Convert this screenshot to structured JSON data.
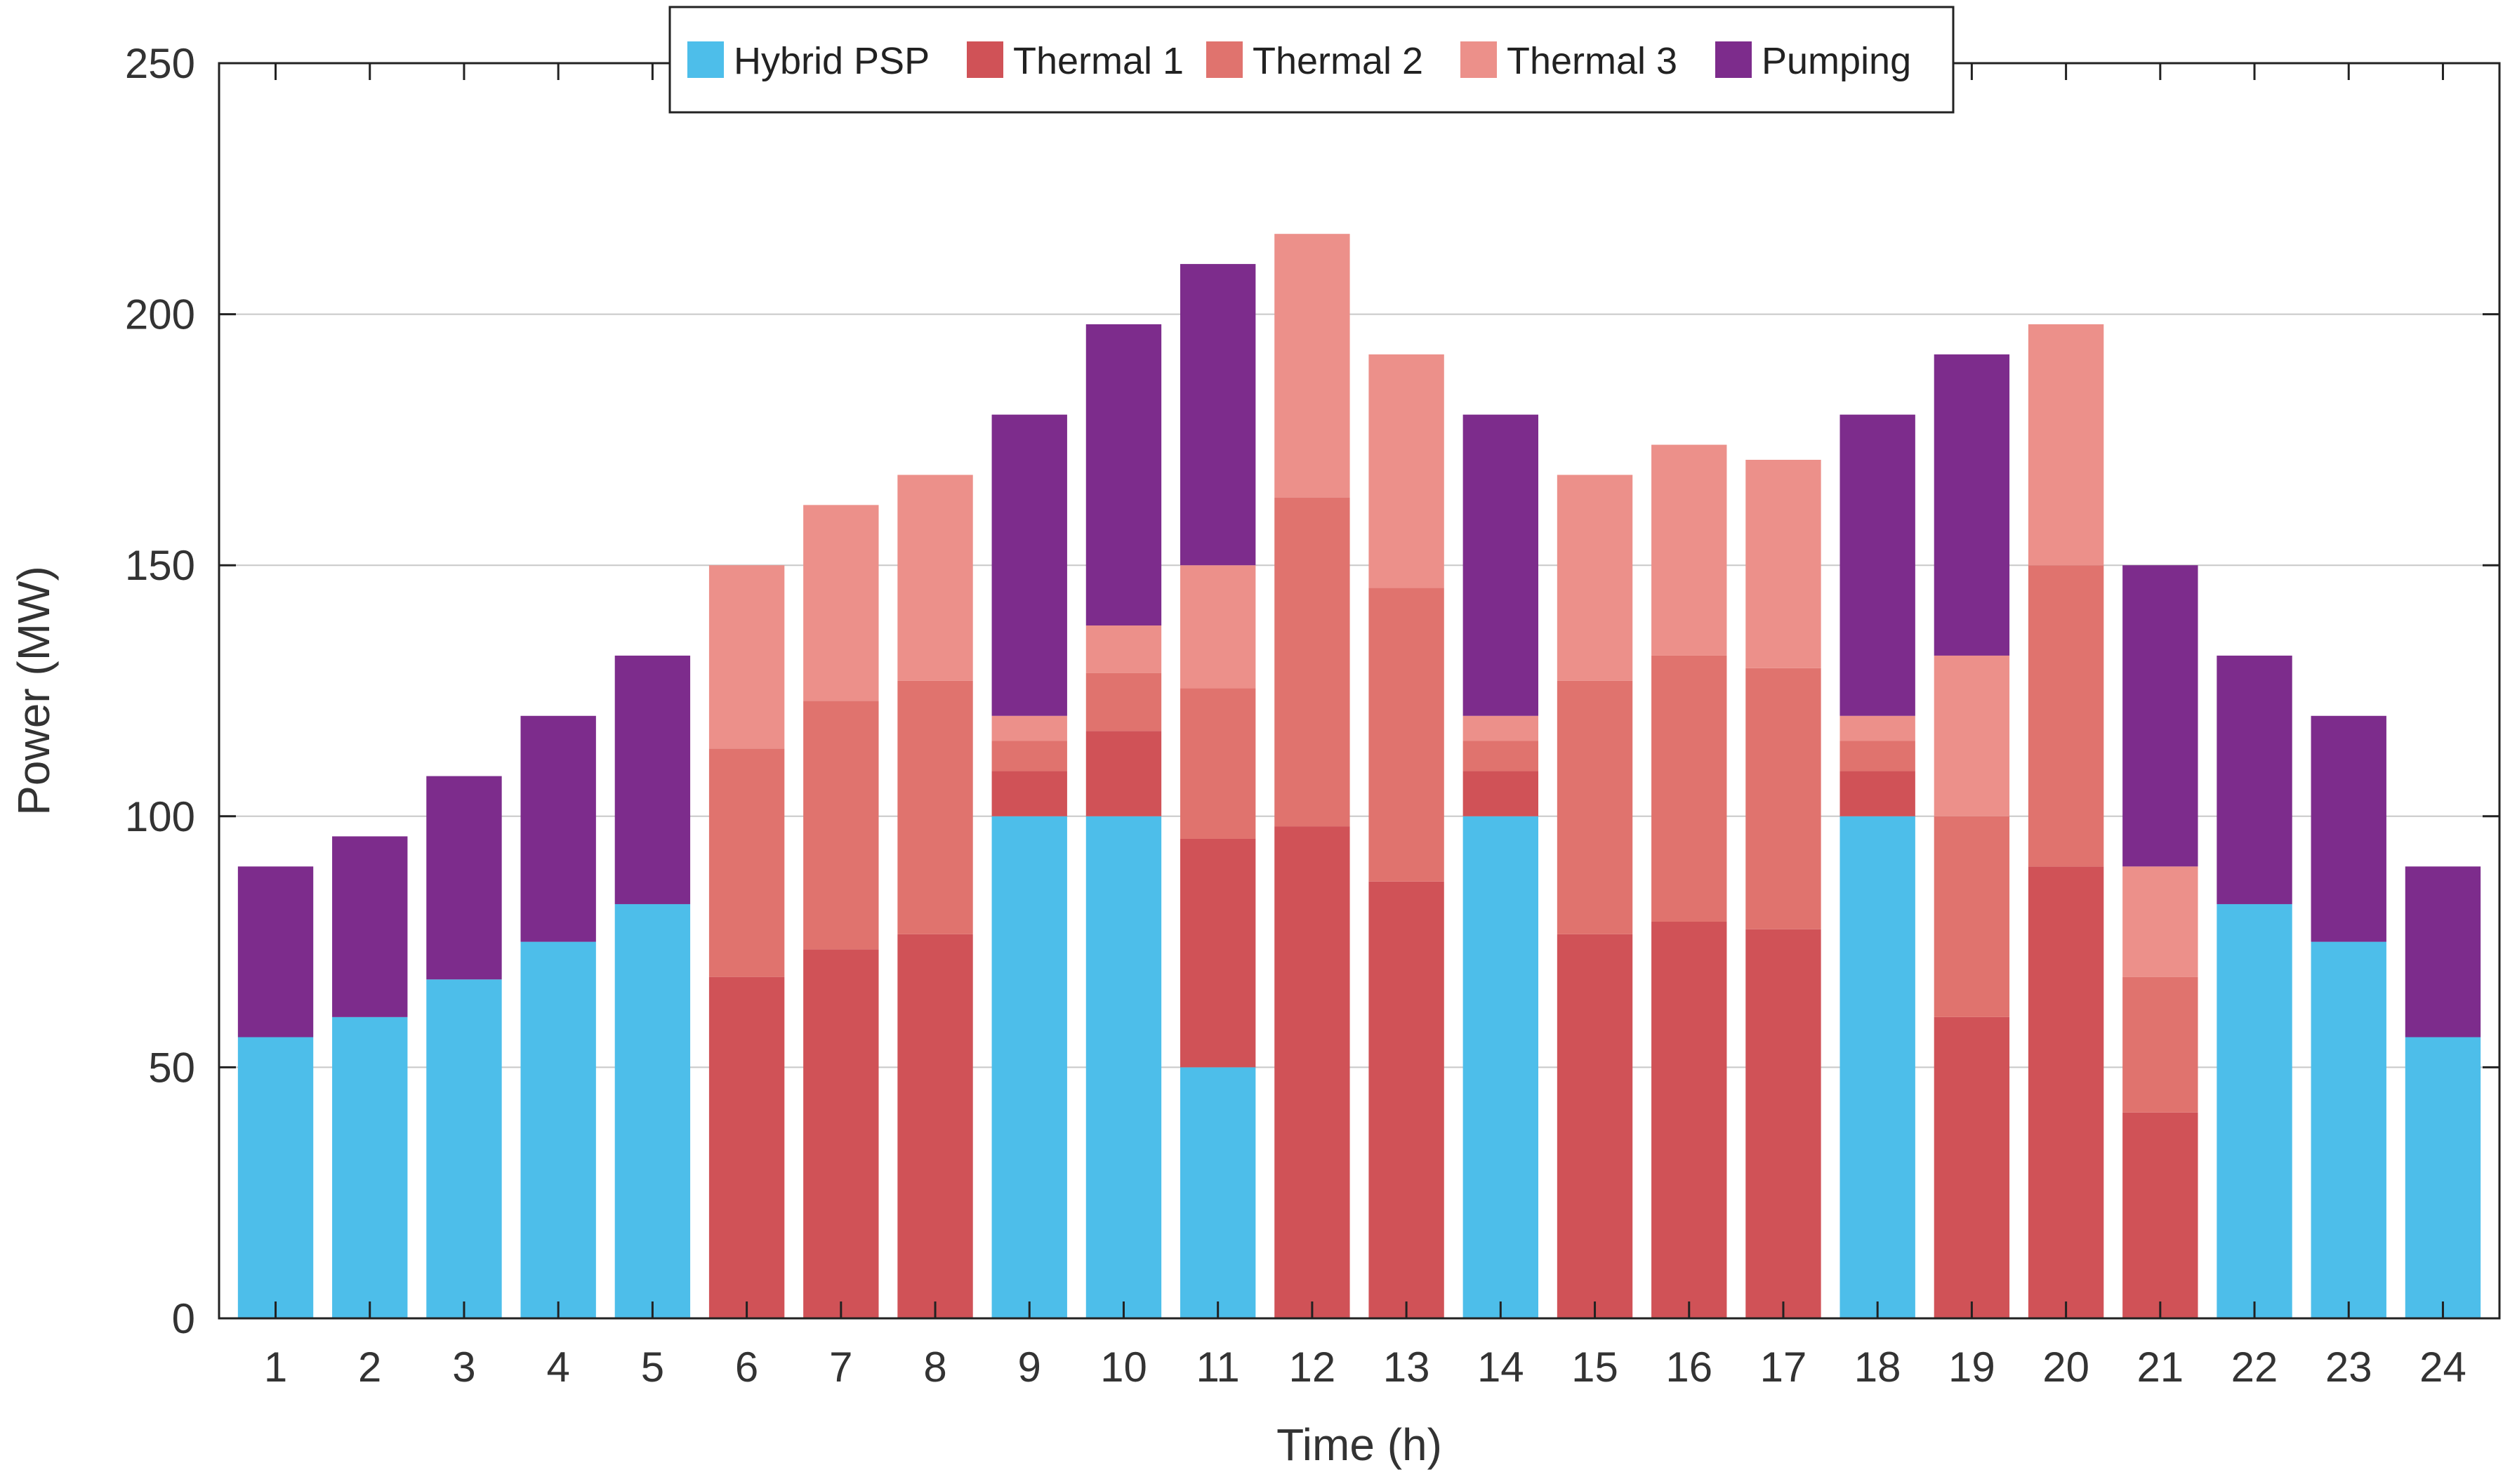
{
  "chart_data": {
    "type": "bar",
    "stacked": true,
    "title": "",
    "xlabel": "Time (h)",
    "ylabel": "Power (MW)",
    "ylim": [
      0,
      250
    ],
    "yticks": [
      0,
      50,
      100,
      150,
      200,
      250
    ],
    "grid": true,
    "legend_position": "top-center",
    "categories": [
      "1",
      "2",
      "3",
      "4",
      "5",
      "6",
      "7",
      "8",
      "9",
      "10",
      "11",
      "12",
      "13",
      "14",
      "15",
      "16",
      "17",
      "18",
      "19",
      "20",
      "21",
      "22",
      "23",
      "24"
    ],
    "series": [
      {
        "name": "Hybrid PSP",
        "color": "#4DBEEA",
        "values": [
          56,
          60,
          67.5,
          75,
          82.5,
          0,
          0,
          0,
          100,
          100,
          50,
          0,
          0,
          100,
          0,
          0,
          0,
          100,
          0,
          0,
          0,
          82.5,
          75,
          56
        ]
      },
      {
        "name": "Thermal 1",
        "color": "#D05257",
        "values": [
          0,
          0,
          0,
          0,
          0,
          68,
          73.5,
          76.5,
          9,
          17,
          45.5,
          98,
          87,
          9,
          76.5,
          79,
          77.5,
          9,
          60,
          90,
          41,
          0,
          0,
          0
        ]
      },
      {
        "name": "Thermal 2",
        "color": "#E0736E",
        "values": [
          0,
          0,
          0,
          0,
          0,
          45.5,
          49.5,
          50.5,
          6,
          11.5,
          30,
          65.5,
          58.5,
          6,
          50.5,
          53,
          52,
          6,
          40,
          60,
          27,
          0,
          0,
          0
        ]
      },
      {
        "name": "Thermal 3",
        "color": "#EC908A",
        "values": [
          0,
          0,
          0,
          0,
          0,
          36.5,
          39,
          41,
          5,
          9.5,
          24.5,
          52.5,
          46.5,
          5,
          41,
          42,
          41.5,
          5,
          32,
          48,
          22,
          0,
          0,
          0
        ]
      },
      {
        "name": "Pumping",
        "color": "#7D2C8C",
        "values": [
          34,
          36,
          40.5,
          45,
          49.5,
          0,
          0,
          0,
          60,
          60,
          60,
          0,
          0,
          60,
          0,
          0,
          0,
          60,
          60,
          0,
          60,
          49.5,
          45,
          34
        ]
      }
    ]
  }
}
